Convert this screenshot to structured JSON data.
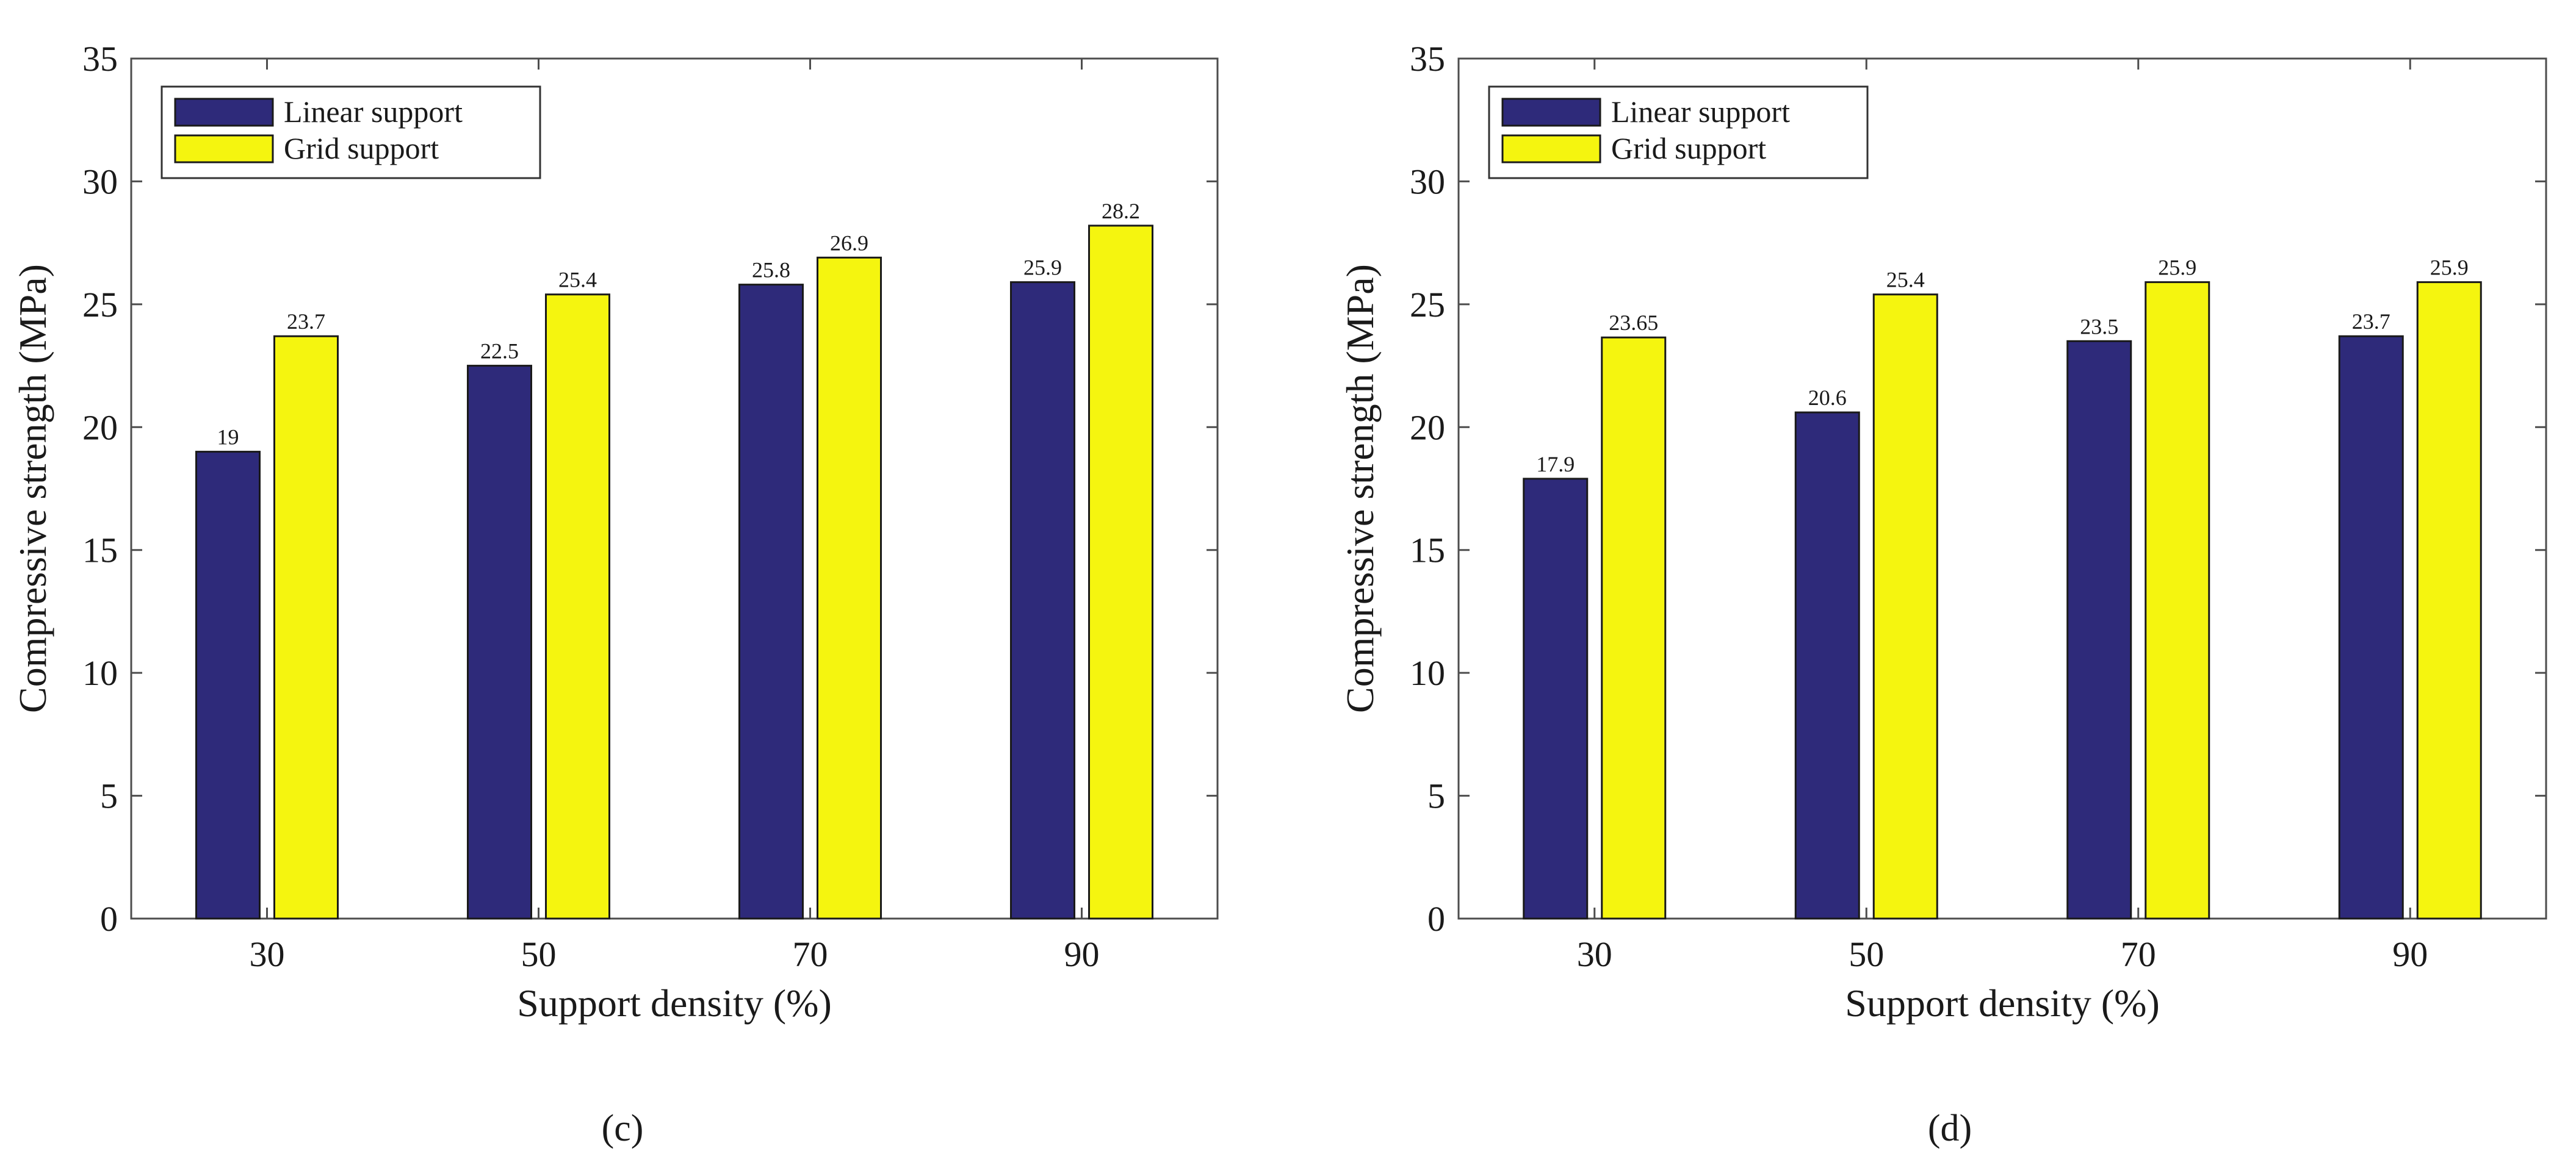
{
  "chart_data": [
    {
      "type": "bar",
      "panel_label": "(c)",
      "categories": [
        "30",
        "50",
        "70",
        "90"
      ],
      "series": [
        {
          "name": "Linear support",
          "color": "#2e2a7a",
          "values": [
            19,
            22.5,
            25.8,
            25.9
          ],
          "labels": [
            "19",
            "22.5",
            "25.8",
            "25.9"
          ]
        },
        {
          "name": "Grid support",
          "color": "#f5f50f",
          "values": [
            23.7,
            25.4,
            26.9,
            28.2
          ],
          "labels": [
            "23.7",
            "25.4",
            "26.9",
            "28.2"
          ]
        }
      ],
      "xlabel": "Support density (%)",
      "ylabel": "Compressive strength (MPa)",
      "ylim": [
        0,
        35
      ],
      "yticks": [
        "0",
        "5",
        "10",
        "15",
        "20",
        "25",
        "30",
        "35"
      ],
      "legend_position": "top-left"
    },
    {
      "type": "bar",
      "panel_label": "(d)",
      "categories": [
        "30",
        "50",
        "70",
        "90"
      ],
      "series": [
        {
          "name": "Linear support",
          "color": "#2e2a7a",
          "values": [
            17.9,
            20.6,
            23.5,
            23.7
          ],
          "labels": [
            "17.9",
            "20.6",
            "23.5",
            "23.7"
          ]
        },
        {
          "name": "Grid support",
          "color": "#f5f50f",
          "values": [
            23.65,
            25.4,
            25.9,
            25.9
          ],
          "labels": [
            "23.65",
            "25.4",
            "25.9",
            "25.9"
          ]
        }
      ],
      "xlabel": "Support density (%)",
      "ylabel": "Compressive strength (MPa)",
      "ylim": [
        0,
        35
      ],
      "yticks": [
        "0",
        "5",
        "10",
        "15",
        "20",
        "25",
        "30",
        "35"
      ],
      "legend_position": "top-left"
    }
  ]
}
